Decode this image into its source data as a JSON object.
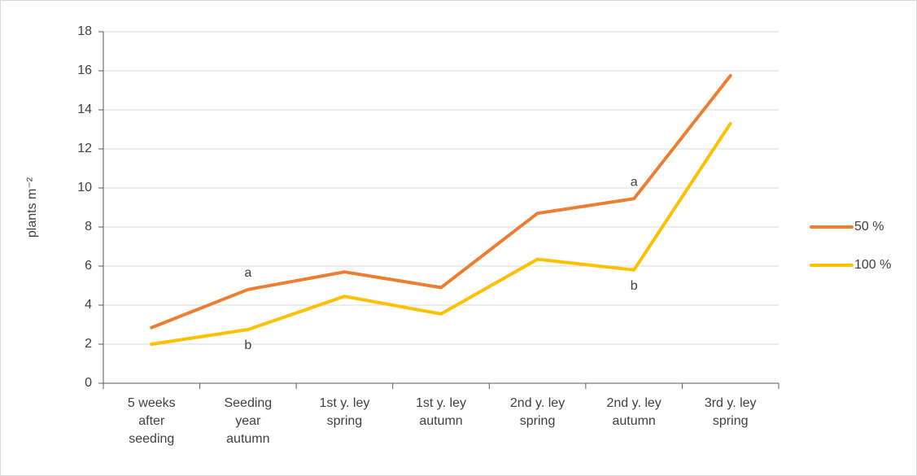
{
  "chart_data": {
    "type": "line",
    "y_label": "plants m⁻²",
    "categories": [
      "5 weeks after seeding",
      "Seeding year autumn",
      "1st y. ley spring",
      "1st y. ley autumn",
      "2nd y. ley spring",
      "2nd y. ley autumn",
      "3rd y. ley spring"
    ],
    "series": [
      {
        "name": "50 %",
        "color": "#ed7d31",
        "values": [
          2.85,
          4.8,
          5.7,
          4.9,
          8.7,
          9.45,
          15.75
        ]
      },
      {
        "name": "100 %",
        "color": "#ffc000",
        "values": [
          2.0,
          2.75,
          4.45,
          3.55,
          6.35,
          5.8,
          13.3
        ]
      }
    ],
    "annotations": [
      {
        "text": "a",
        "category": "Seeding year autumn",
        "series": "50 %"
      },
      {
        "text": "b",
        "category": "Seeding year autumn",
        "series": "100 %"
      },
      {
        "text": "a",
        "category": "2nd y. ley autumn",
        "series": "50 %"
      },
      {
        "text": "b",
        "category": "2nd y. ley autumn",
        "series": "100 %"
      }
    ],
    "ylim": [
      0,
      18
    ],
    "yticks": [
      0,
      2,
      4,
      6,
      8,
      10,
      12,
      14,
      16,
      18
    ],
    "grid": true,
    "legend": "right"
  }
}
